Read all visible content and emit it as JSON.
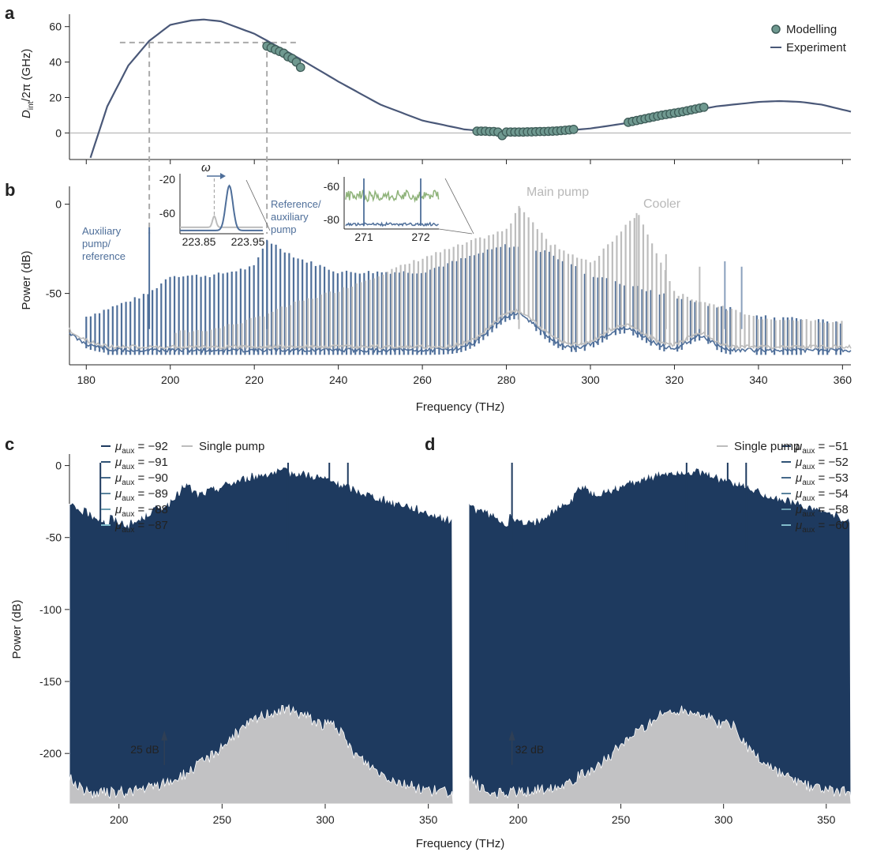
{
  "chart_data": [
    {
      "panel": "a",
      "type": "line",
      "ylabel_main": "D",
      "ylabel_sub": "int",
      "ylabel_rest": "/2π (GHz)",
      "xlim": [
        176,
        362
      ],
      "ylim": [
        -15,
        67
      ],
      "yticks": [
        "60",
        "40",
        "20",
        "0"
      ],
      "legend": [
        "Modelling",
        "Experiment"
      ],
      "legend_position": "top-right",
      "series": [
        {
          "name": "Experiment",
          "type": "line",
          "color": "#4a5878",
          "x": [
            181,
            185,
            190,
            195,
            200,
            205,
            208,
            212,
            220,
            230,
            240,
            250,
            260,
            270,
            280,
            290,
            300,
            310,
            320,
            330,
            340,
            345,
            350,
            355,
            362
          ],
          "y": [
            -14,
            15,
            38,
            52,
            61,
            63.5,
            64,
            63,
            56,
            43,
            29,
            16,
            7,
            2,
            0,
            0.5,
            2.5,
            6,
            10.5,
            15,
            17.5,
            18,
            17.5,
            16,
            12
          ]
        },
        {
          "name": "Modelling",
          "type": "scatter",
          "color": "#6f9990",
          "x": [
            223,
            224,
            225,
            226,
            227,
            228,
            229,
            230,
            231,
            273,
            274,
            275,
            276,
            277,
            278,
            279,
            280,
            281,
            282,
            283,
            284,
            285,
            286,
            287,
            288,
            289,
            290,
            291,
            292,
            293,
            294,
            295,
            296,
            309,
            310,
            311,
            312,
            313,
            314,
            315,
            316,
            317,
            318,
            319,
            320,
            321,
            322,
            323,
            324,
            325,
            326,
            327
          ],
          "y": [
            49,
            48,
            47,
            46,
            45,
            43,
            42,
            40,
            37,
            1,
            1,
            1,
            0.8,
            0.8,
            0.5,
            -1.5,
            0.5,
            0.5,
            0.5,
            0.5,
            0.5,
            0.6,
            0.6,
            0.7,
            0.8,
            0.8,
            0.9,
            1,
            1.1,
            1.3,
            1.5,
            1.7,
            2,
            6,
            6.5,
            7,
            7.5,
            8,
            8.5,
            9,
            9.5,
            10,
            10.4,
            10.8,
            11.2,
            11.6,
            12,
            12.5,
            13,
            13.5,
            14,
            14.5
          ]
        }
      ],
      "guides": {
        "level": 51,
        "x_marks": [
          195,
          223
        ]
      }
    },
    {
      "panel": "b",
      "type": "line",
      "xlabel": "Frequency (THz)",
      "ylabel": "Power (dB)",
      "xlim": [
        176,
        362
      ],
      "ylim": [
        -90,
        10
      ],
      "xticks": [
        "180",
        "200",
        "220",
        "240",
        "260",
        "280",
        "300",
        "320",
        "340",
        "360"
      ],
      "yticks": [
        "0",
        "-50"
      ],
      "annotations": [
        "Auxiliary pump/ reference",
        "Reference/ auxiliary pump",
        "Main pump",
        "Cooler"
      ],
      "series": [
        {
          "name": "",
          "color": "#4f6f9a",
          "x": [
            180,
            195,
            200,
            210,
            220,
            223,
            230,
            240,
            260,
            280,
            290,
            300,
            320,
            340,
            360
          ],
          "y": [
            -63,
            -50,
            -40,
            -40,
            -35,
            -20,
            -30,
            -38,
            -38,
            -23,
            -27,
            -40,
            -52,
            -62,
            -66
          ]
        },
        {
          "name": "",
          "color": "#bdbdbd",
          "x": [
            180,
            195,
            200,
            210,
            220,
            223,
            230,
            240,
            260,
            280,
            283,
            290,
            300,
            311,
            320,
            340,
            360
          ],
          "y": [
            -68,
            -74,
            -72,
            -70,
            -64,
            -61,
            -55,
            -48,
            -30,
            -14,
            -1,
            -22,
            -33,
            -5,
            -50,
            -64,
            -66
          ]
        }
      ],
      "inset_left": {
        "xticks": [
          "223.85",
          "223.95"
        ],
        "yticks": [
          "-20",
          "-60"
        ],
        "arrow_label": "ω"
      },
      "inset_right": {
        "xticks": [
          "271",
          "272"
        ],
        "yticks": [
          "-60",
          "-80"
        ]
      }
    },
    {
      "panel": "c",
      "type": "line",
      "xlabel": "Frequency (THz)",
      "ylabel": "Power (dB)",
      "xlim": [
        176,
        362
      ],
      "ylim": [
        -235,
        8
      ],
      "xticks": [
        "200",
        "250",
        "300",
        "350"
      ],
      "yticks": [
        "0",
        "-50",
        "-100",
        "-150",
        "-200"
      ],
      "legend": [
        "μaux = −92",
        "μaux = −91",
        "μaux = −90",
        "μaux = −89",
        "μaux = −88",
        "μaux = −87",
        "Single pump"
      ],
      "legend_pump_label": "Single pump",
      "legend_mu": [
        "−92",
        "−91",
        "−90",
        "−89",
        "−88",
        "−87"
      ],
      "offsets": [
        -42,
        -73,
        -104,
        -135,
        -160,
        -185
      ],
      "hump_x": 232,
      "step_label": "25 dB",
      "colors": [
        "#1e3a5f",
        "#2f5275",
        "#45698a",
        "#5a839d",
        "#6c9db0",
        "#82bccb"
      ]
    },
    {
      "panel": "d",
      "type": "line",
      "xlabel": "Frequency (THz)",
      "xlim": [
        176,
        362
      ],
      "ylim": [
        -235,
        8
      ],
      "xticks": [
        "200",
        "250",
        "300",
        "350"
      ],
      "legend": [
        "Single pump",
        "μaux = −51",
        "μaux = −52",
        "μaux = −53",
        "μaux = −54",
        "μaux = −58",
        "μaux = −60"
      ],
      "legend_pump_label": "Single pump",
      "legend_mu": [
        "−51",
        "−52",
        "−53",
        "−54",
        "−58",
        "−60"
      ],
      "offsets": [
        -42,
        -73,
        -104,
        -135,
        -160,
        -185
      ],
      "hump_x": 231,
      "step_label": "32 dB",
      "colors": [
        "#1e3a5f",
        "#2f5275",
        "#45698a",
        "#5a839d",
        "#6c9db0",
        "#82bccb"
      ]
    }
  ],
  "panel_labels": [
    "a",
    "b",
    "c",
    "d"
  ],
  "mu_symbol": "μ",
  "mu_sub": "aux"
}
